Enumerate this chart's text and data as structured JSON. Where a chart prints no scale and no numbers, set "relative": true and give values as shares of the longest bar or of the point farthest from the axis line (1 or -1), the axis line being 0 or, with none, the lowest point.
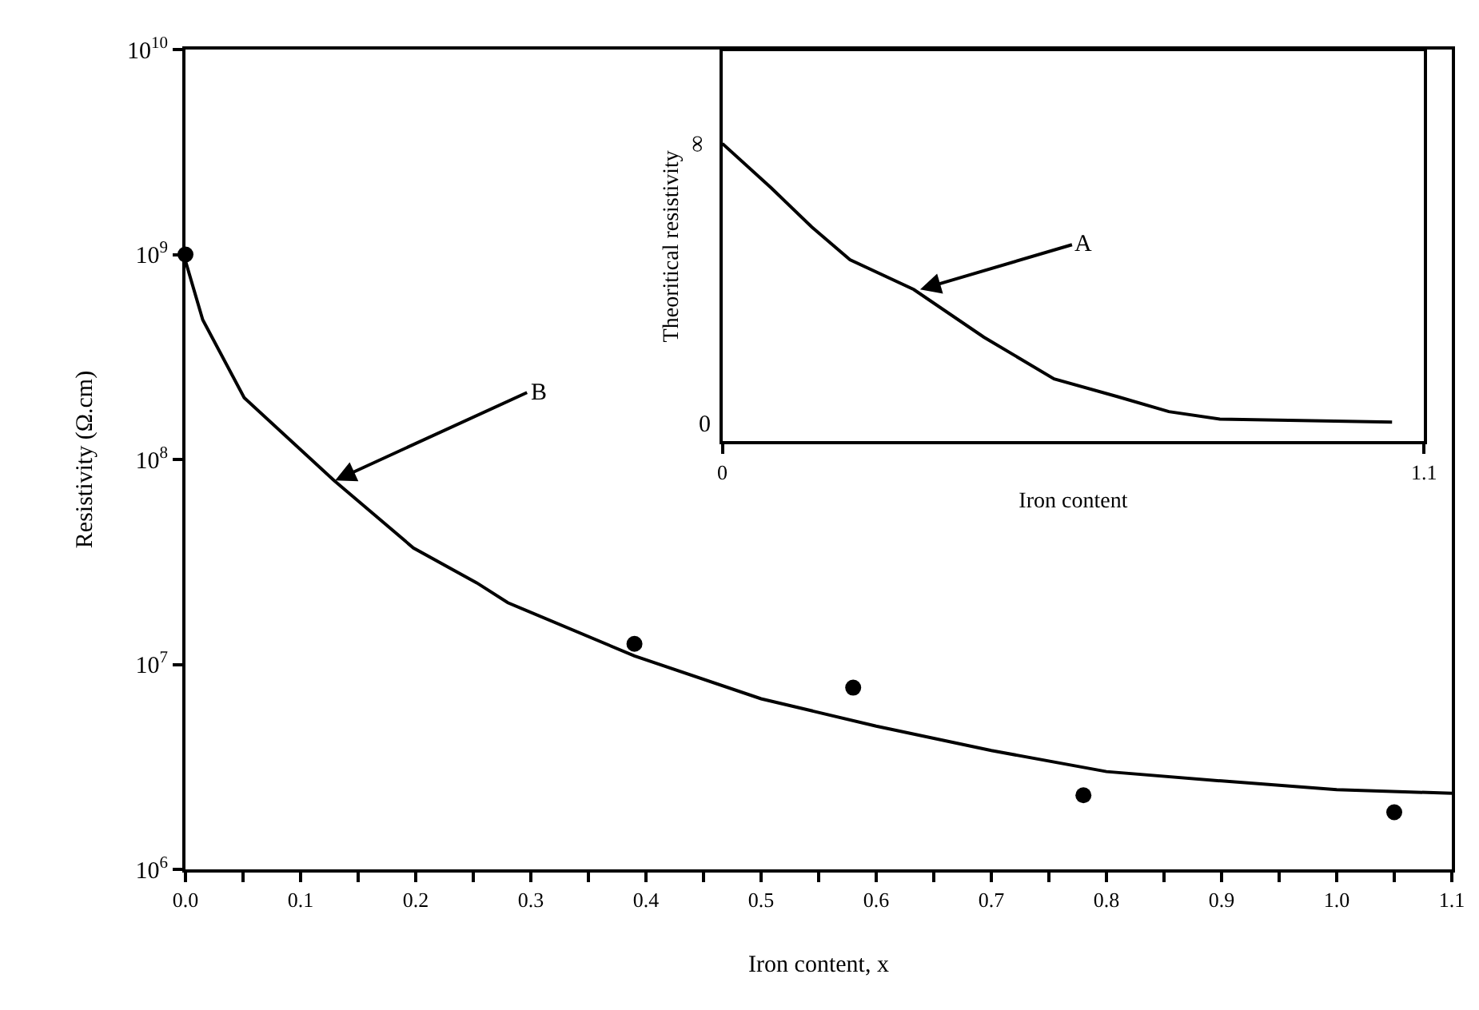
{
  "chart_data": [
    {
      "type": "line",
      "xlabel": "Iron content, x",
      "ylabel": "Resistivity (Ω.cm)",
      "log": "y",
      "xlim": [
        0,
        1.1
      ],
      "ylim": [
        1000000.0,
        10000000000.0
      ],
      "xticks": [
        {
          "value": 0,
          "label": "0.0"
        },
        {
          "value": 0.05,
          "label": null
        },
        0.1,
        {
          "value": 0.15,
          "label": null
        },
        0.2,
        {
          "value": 0.25,
          "label": null
        },
        0.3,
        {
          "value": 0.35,
          "label": null
        },
        0.4,
        {
          "value": 0.45,
          "label": null
        },
        0.5,
        {
          "value": 0.55,
          "label": null
        },
        0.6,
        {
          "value": 0.65,
          "label": null
        },
        0.7,
        {
          "value": 0.75,
          "label": null
        },
        0.8,
        {
          "value": 0.85,
          "label": null
        },
        0.9,
        {
          "value": 0.95,
          "label": null
        },
        {
          "value": 1.0,
          "label": "1.0"
        },
        {
          "value": 1.05,
          "label": null
        },
        1.1
      ],
      "yticks": [
        {
          "value": 1000000.0,
          "label": "10$^{6}$"
        },
        {
          "value": 10000000.0,
          "label": "10$^{7}$"
        },
        {
          "value": 100000000.0,
          "label": "10$^{8}$"
        },
        {
          "value": 1000000000.0,
          "label": "10$^{9}$"
        },
        {
          "value": 10000000000.0,
          "label": "10$^{10}$"
        }
      ],
      "series": [
        {
          "type": "line",
          "color": "#000000",
          "marker": "none",
          "line_style": "solid",
          "x": [
            0,
            0.015,
            0.051,
            0.129,
            0.198,
            0.253,
            0.28,
            0.39,
            0.5,
            0.6,
            0.7,
            0.8,
            0.9,
            1.0,
            1.1
          ],
          "values": [
            930000000.0,
            480000000.0,
            200000000.0,
            79000000.0,
            37000000.0,
            25000000.0,
            20000000.0,
            11000000.0,
            6800000.0,
            5000000.0,
            3800000.0,
            3000000.0,
            2700000.0,
            2450000.0,
            2350000.0
          ]
        },
        {
          "type": "scatter",
          "color": "#000000",
          "marker": "circle",
          "x": [
            0,
            0.39,
            0.58,
            0.78,
            1.05
          ],
          "values": [
            1000000000.0,
            12600000.0,
            7700000.0,
            2300000.0,
            1900000.0
          ]
        }
      ],
      "annotations": [
        {
          "text": "B",
          "x": 0.13,
          "y": 79000000.0
        }
      ]
    },
    {
      "type": "line",
      "xlabel": "Iron content",
      "ylabel": "Theoritical resistivity",
      "relative": true,
      "xlim": [
        0,
        1.1
      ],
      "xticks": [
        0,
        1.1
      ],
      "series": [
        {
          "type": "line",
          "color": "#000000",
          "marker": "none",
          "line_style": "solid",
          "x": [
            0,
            0.077,
            0.14,
            0.2,
            0.3,
            0.41,
            0.52,
            0.62,
            0.7,
            0.78,
            1.05
          ],
          "values": [
            1.0,
            0.85,
            0.72,
            0.61,
            0.51,
            0.35,
            0.21,
            0.15,
            0.1,
            0.075,
            0.065
          ]
        }
      ],
      "annotations": [
        {
          "text": "A",
          "x": 0.31,
          "y": 0.51
        },
        "0",
        "∞"
      ]
    }
  ]
}
